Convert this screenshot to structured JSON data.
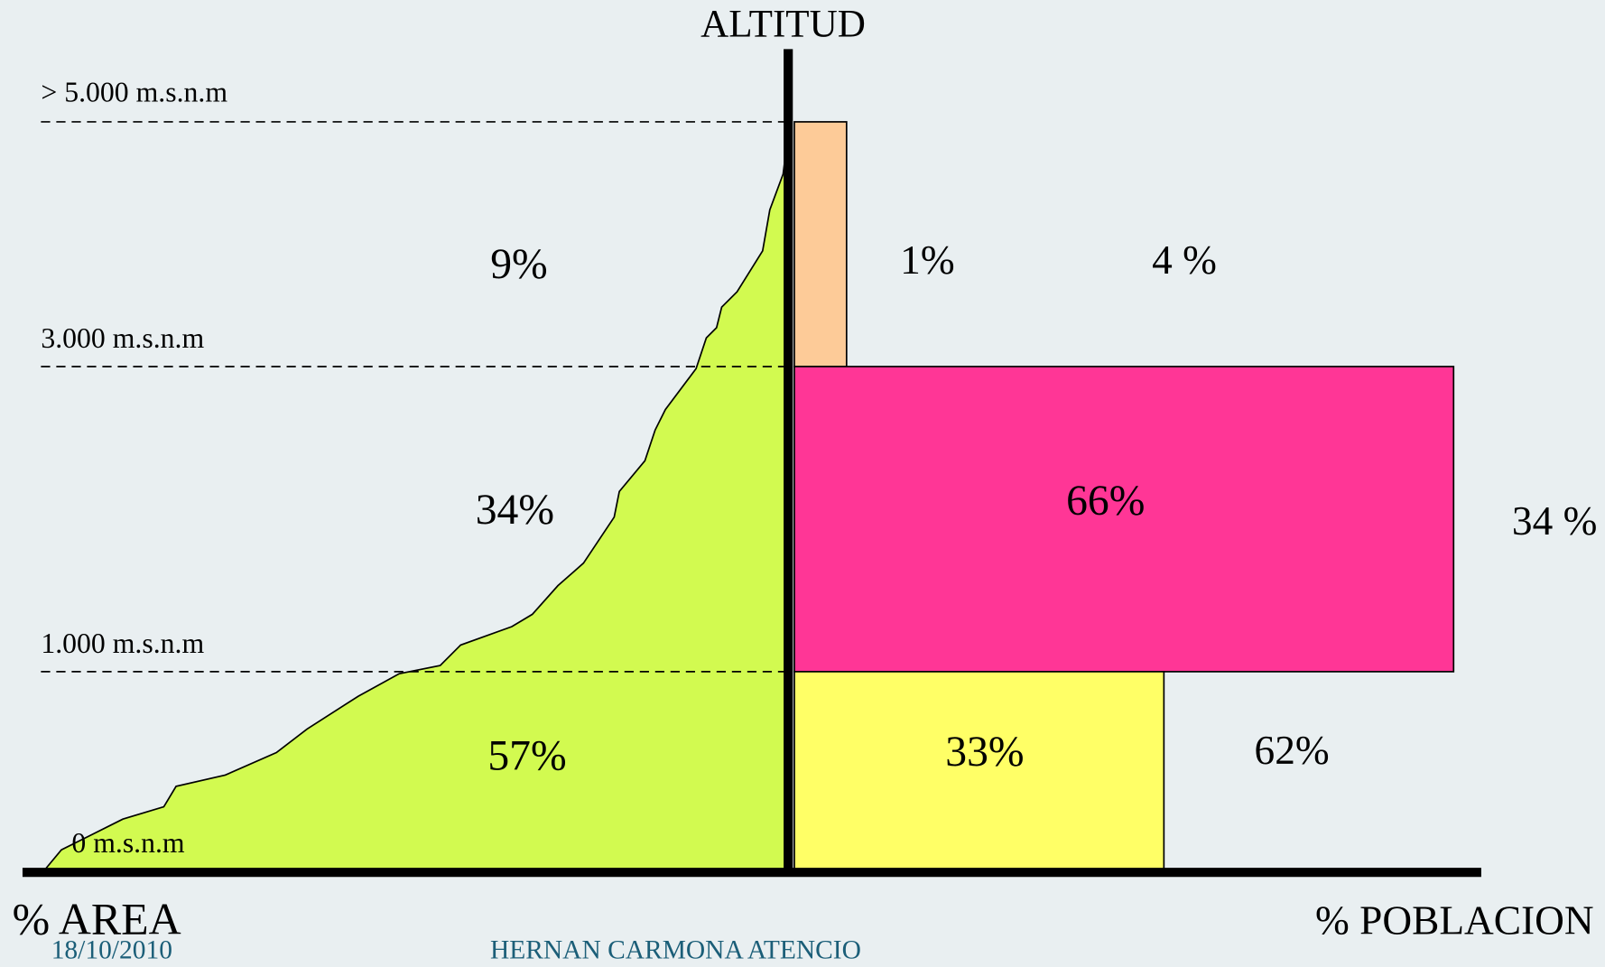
{
  "title": "ALTITUD",
  "altitude_labels": [
    "> 5.000  m.s.n.m",
    "3.000 m.s.n.m",
    "1.000 m.s.n.m",
    "0 m.s.n.m"
  ],
  "area_shares": [
    "9%",
    "34%",
    "57%"
  ],
  "population_bars": [
    "1%",
    "66%",
    "33%"
  ],
  "other_shares": [
    "4 %",
    "34 %",
    "62%"
  ],
  "x_axis_left": "% AREA",
  "x_axis_right": "% POBLACION",
  "footer": {
    "date": "18/10/2010",
    "author": "HERNAN CARMONA ATENCIO"
  }
}
